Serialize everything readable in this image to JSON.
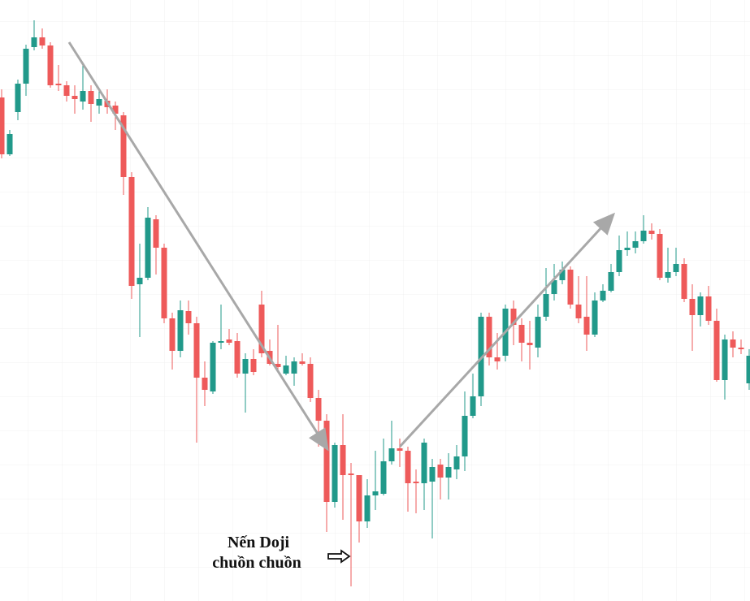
{
  "chart_data": {
    "type": "candlestick",
    "annotation": [
      "Nến Doji",
      "chuồn chuồn"
    ],
    "up_color": "#21998a",
    "down_color": "#ee5a5a",
    "ylim": [
      0,
      740
    ],
    "open": [
      620,
      550,
      602,
      637,
      682,
      694,
      684,
      637,
      635,
      622,
      615,
      628,
      610,
      616,
      610,
      598,
      522,
      390,
      398,
      470,
      435,
      348,
      308,
      357,
      342,
      275,
      258,
      318,
      322,
      320,
      280,
      298,
      365,
      308,
      292,
      280,
      280,
      295,
      292,
      250,
      222,
      122,
      192,
      157,
      155,
      98,
      130,
      132,
      172,
      188,
      185,
      147,
      145,
      147,
      168,
      152,
      162,
      178,
      228,
      252,
      350,
      300,
      302,
      360,
      340,
      318,
      312,
      350,
      378,
      395,
      408,
      365,
      350,
      328,
      370,
      382,
      405,
      432,
      435,
      443,
      456,
      452,
      398,
      405,
      415,
      372,
      352,
      375,
      345,
      272,
      322,
      312,
      268
    ],
    "high": [
      630,
      580,
      642,
      685,
      715,
      705,
      688,
      660,
      640,
      635,
      660,
      635,
      630,
      630,
      615,
      602,
      528,
      440,
      485,
      475,
      440,
      355,
      370,
      370,
      350,
      295,
      320,
      365,
      335,
      330,
      305,
      310,
      382,
      322,
      340,
      302,
      300,
      305,
      300,
      260,
      230,
      195,
      230,
      170,
      155,
      150,
      185,
      200,
      222,
      200,
      190,
      162,
      200,
      175,
      175,
      182,
      192,
      258,
      280,
      355,
      355,
      330,
      365,
      370,
      348,
      345,
      365,
      410,
      415,
      418,
      412,
      400,
      400,
      380,
      390,
      415,
      450,
      455,
      455,
      475,
      465,
      458,
      435,
      435,
      422,
      390,
      380,
      388,
      360,
      328,
      332,
      322,
      310
    ],
    "low": [
      545,
      548,
      592,
      622,
      678,
      680,
      632,
      628,
      615,
      600,
      605,
      590,
      600,
      600,
      580,
      500,
      372,
      325,
      395,
      402,
      342,
      285,
      300,
      328,
      195,
      240,
      255,
      310,
      315,
      275,
      232,
      278,
      300,
      290,
      285,
      278,
      265,
      290,
      245,
      190,
      85,
      115,
      100,
      18,
      72,
      90,
      112,
      130,
      168,
      165,
      110,
      108,
      112,
      77,
      125,
      125,
      150,
      160,
      225,
      240,
      290,
      285,
      295,
      315,
      295,
      285,
      300,
      345,
      370,
      390,
      360,
      342,
      308,
      325,
      368,
      380,
      400,
      425,
      428,
      440,
      445,
      395,
      392,
      400,
      368,
      308,
      338,
      340,
      270,
      248,
      300,
      304,
      260
    ],
    "close": [
      550,
      575,
      637,
      680,
      694,
      684,
      635,
      635,
      622,
      618,
      628,
      612,
      618,
      608,
      600,
      522,
      388,
      398,
      472,
      435,
      348,
      308,
      358,
      342,
      275,
      260,
      318,
      320,
      318,
      280,
      298,
      282,
      305,
      292,
      288,
      290,
      295,
      292,
      250,
      222,
      122,
      192,
      155,
      155,
      98,
      130,
      135,
      172,
      188,
      185,
      145,
      145,
      195,
      165,
      152,
      165,
      178,
      228,
      252,
      350,
      300,
      295,
      360,
      340,
      318,
      315,
      350,
      378,
      395,
      408,
      365,
      348,
      328,
      370,
      382,
      405,
      432,
      435,
      443,
      456,
      452,
      398,
      405,
      415,
      372,
      352,
      375,
      345,
      272,
      322,
      312,
      310,
      302
    ]
  }
}
